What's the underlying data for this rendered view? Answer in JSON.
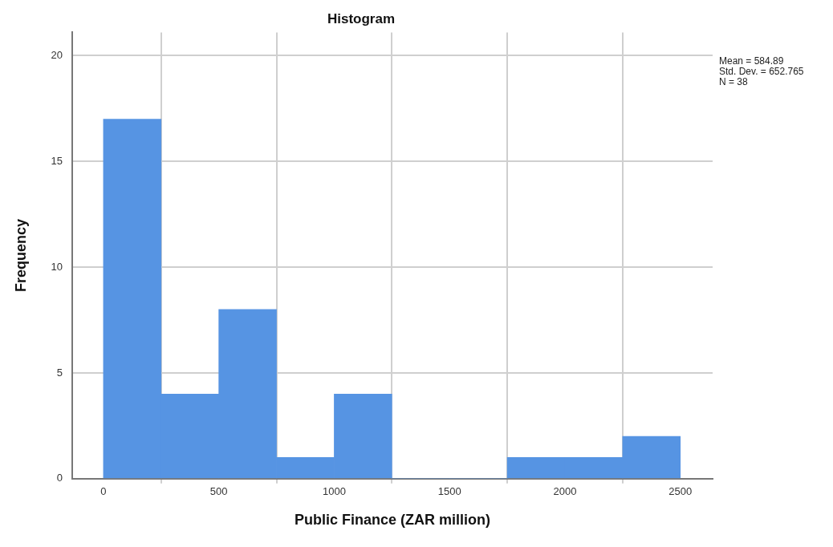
{
  "chart_data": {
    "type": "histogram",
    "title": "Histogram",
    "xlabel": "Public Finance (ZAR million)",
    "ylabel": "Frequency",
    "bins": [
      0,
      250,
      500,
      750,
      1000,
      1250,
      1500,
      1750,
      2000,
      2250,
      2500
    ],
    "values": [
      17,
      4,
      8,
      1,
      4,
      0,
      0,
      1,
      1,
      2
    ],
    "color": "#5694e3",
    "xlim": [
      -135,
      2640
    ],
    "ylim": [
      0,
      21.1
    ],
    "xticks": [
      0,
      500,
      1000,
      1500,
      2000,
      2500
    ],
    "yticks": [
      0,
      5,
      10,
      15,
      20
    ],
    "grid": true,
    "annotations": [
      "Mean = 584.89",
      "Std. Dev. = 652.765",
      "N = 38"
    ]
  }
}
